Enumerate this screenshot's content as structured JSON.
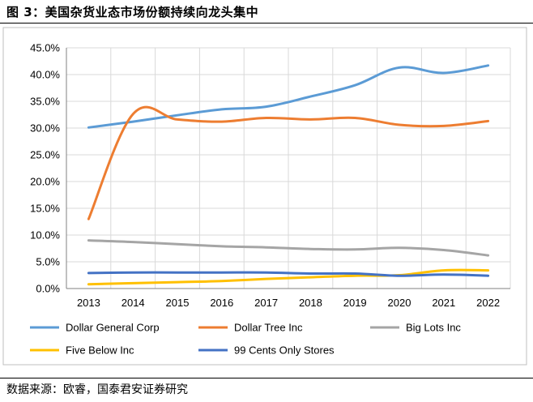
{
  "figure": {
    "title": "图 3：美国杂货业态市场份额持续向龙头集中",
    "source": "数据来源：欧睿，国泰君安证券研究"
  },
  "chart_data": {
    "type": "line",
    "x": [
      "2013",
      "2014",
      "2015",
      "2016",
      "2017",
      "2018",
      "2019",
      "2020",
      "2021",
      "2022"
    ],
    "ylim": [
      0,
      45
    ],
    "yticks": [
      "0.0%",
      "5.0%",
      "10.0%",
      "15.0%",
      "20.0%",
      "25.0%",
      "30.0%",
      "35.0%",
      "40.0%",
      "45.0%"
    ],
    "grid": true,
    "legend_position": "bottom",
    "series": [
      {
        "name": "Dollar General Corp",
        "color": "#5B9BD5",
        "values": [
          30.1,
          31.2,
          32.4,
          33.5,
          34.0,
          35.9,
          38.0,
          41.3,
          40.3,
          41.7
        ]
      },
      {
        "name": "Dollar Tree Inc",
        "color": "#ED7D31",
        "values": [
          13.0,
          32.6,
          31.6,
          31.2,
          31.9,
          31.6,
          31.9,
          30.6,
          30.4,
          31.3
        ]
      },
      {
        "name": "Big Lots Inc",
        "color": "#A5A5A5",
        "values": [
          9.0,
          8.7,
          8.3,
          7.9,
          7.7,
          7.4,
          7.3,
          7.6,
          7.2,
          6.2
        ]
      },
      {
        "name": "Five Below Inc",
        "color": "#FFC000",
        "values": [
          0.8,
          1.0,
          1.2,
          1.4,
          1.8,
          2.1,
          2.4,
          2.5,
          3.4,
          3.4
        ]
      },
      {
        "name": "99 Cents Only Stores",
        "color": "#4472C4",
        "values": [
          2.9,
          3.0,
          3.0,
          3.0,
          3.0,
          2.8,
          2.8,
          2.4,
          2.6,
          2.4
        ]
      }
    ]
  }
}
